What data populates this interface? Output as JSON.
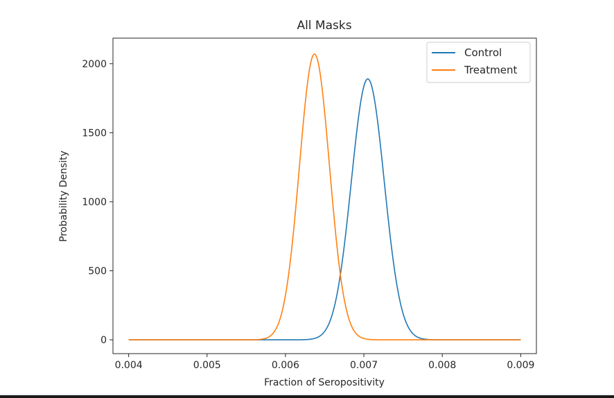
{
  "chart_data": {
    "type": "line",
    "title": "All Masks",
    "xlabel": "Fraction of Seropositivity",
    "ylabel": "Probability Density",
    "xlim": [
      0.0038,
      0.0092
    ],
    "ylim": [
      -100,
      2185
    ],
    "x_ticks": [
      0.004,
      0.005,
      0.006,
      0.007,
      0.008,
      0.009
    ],
    "x_tick_labels": [
      "0.004",
      "0.005",
      "0.006",
      "0.007",
      "0.008",
      "0.009"
    ],
    "y_ticks": [
      0,
      500,
      1000,
      1500,
      2000
    ],
    "y_tick_labels": [
      "0",
      "500",
      "1000",
      "1500",
      "2000"
    ],
    "grid": false,
    "legend_position": "top-right",
    "x_range": [
      0.004,
      0.009
    ],
    "series": [
      {
        "name": "Control",
        "color": "#1f77b4",
        "distribution": "normal",
        "mean": 0.00705,
        "std": 0.00021,
        "peak": 1890
      },
      {
        "name": "Treatment",
        "color": "#ff7f0e",
        "distribution": "normal",
        "mean": 0.00637,
        "std": 0.000192,
        "peak": 2070
      }
    ]
  }
}
